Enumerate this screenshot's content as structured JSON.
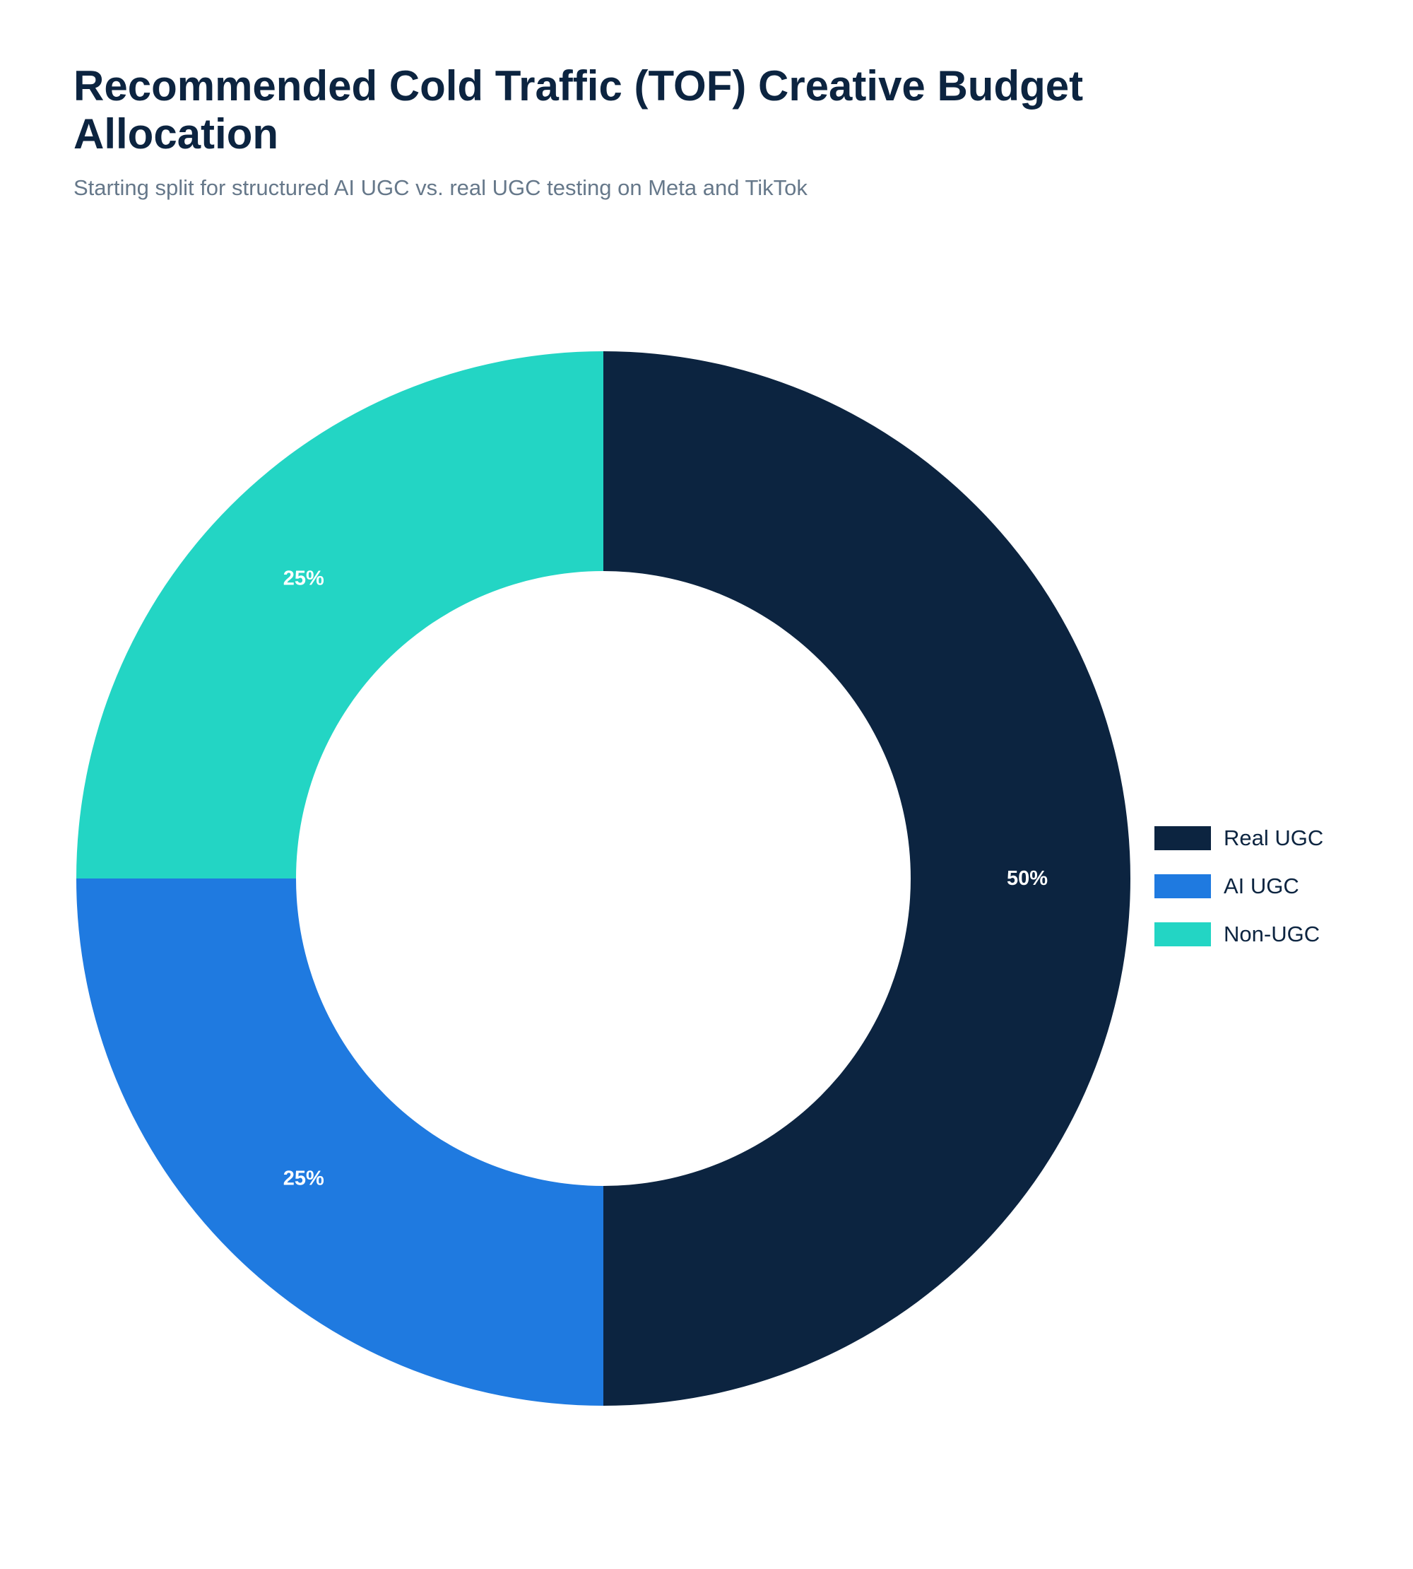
{
  "chart_data": {
    "type": "pie",
    "style": "donut",
    "title": "Recommended Cold Traffic (TOF) Creative Budget Allocation",
    "subtitle": "Starting split for structured AI UGC vs. real UGC testing on Meta and TikTok",
    "unit": "%",
    "legend_position": "right",
    "slices": [
      {
        "label": "Real UGC",
        "value": 50,
        "color": "#0c2440",
        "data_label": "50%"
      },
      {
        "label": "AI UGC",
        "value": 25,
        "color": "#1f7ae0",
        "data_label": "25%"
      },
      {
        "label": "Non-UGC",
        "value": 25,
        "color": "#23d5c4",
        "data_label": "25%"
      }
    ]
  }
}
